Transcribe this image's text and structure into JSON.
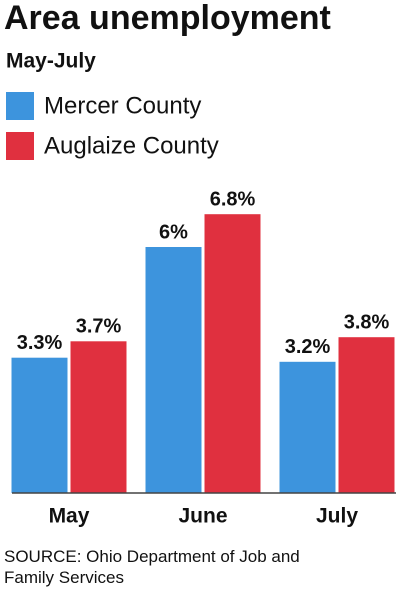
{
  "chart_data": {
    "type": "bar",
    "title": "Area unemployment",
    "subtitle": "May-July",
    "categories": [
      "May",
      "June",
      "July"
    ],
    "series": [
      {
        "name": "Mercer County",
        "color": "#3d94dd",
        "values": [
          3.3,
          6,
          3.2
        ],
        "value_labels": [
          "3.3%",
          "6%",
          "3.2%"
        ]
      },
      {
        "name": "Auglaize County",
        "color": "#e0303f",
        "values": [
          3.7,
          6.8,
          3.8
        ],
        "value_labels": [
          "3.7%",
          "6.8%",
          "3.8%"
        ]
      }
    ],
    "ylim": [
      0,
      7
    ],
    "source": "SOURCE: Ohio Department of Job and Family Services"
  }
}
